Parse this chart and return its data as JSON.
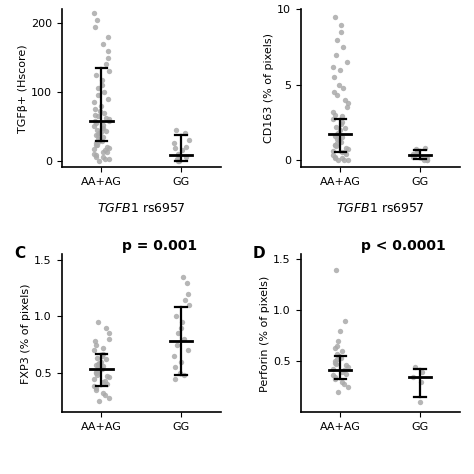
{
  "panel_A": {
    "ylabel": "TGFβ+ (Hscore)",
    "xlabel_italic": "TGFB1",
    "xlabel_normal": " rs6957",
    "groups": [
      "AA+AG",
      "GG"
    ],
    "AA_AG_points": [
      0,
      2,
      3,
      5,
      5,
      8,
      10,
      12,
      13,
      15,
      17,
      18,
      20,
      22,
      23,
      25,
      27,
      28,
      30,
      32,
      35,
      37,
      38,
      40,
      42,
      43,
      45,
      47,
      48,
      50,
      52,
      55,
      57,
      58,
      60,
      62,
      65,
      67,
      70,
      72,
      75,
      80,
      85,
      90,
      95,
      100,
      105,
      110,
      118,
      125,
      130,
      140,
      150,
      160,
      170,
      180,
      195,
      205,
      215
    ],
    "GG_points": [
      0,
      0,
      2,
      5,
      8,
      10,
      15,
      18,
      20,
      25,
      30,
      40,
      45
    ],
    "AA_AG_median": 57,
    "AA_AG_q1": 28,
    "AA_AG_q3": 135,
    "GG_median": 8,
    "GG_q1": 0,
    "GG_q3": 38,
    "ylim": [
      -10,
      220
    ],
    "yticks": [
      0,
      100,
      200
    ],
    "x_positions": [
      1,
      2
    ]
  },
  "panel_B": {
    "ylabel": "CD163 (% of pixels)",
    "xlabel_italic": "TGFB1",
    "xlabel_normal": " rs6957",
    "groups": [
      "AA+AG",
      "GG"
    ],
    "AA_AG_points": [
      0,
      0,
      0,
      0.1,
      0.1,
      0.2,
      0.3,
      0.4,
      0.5,
      0.5,
      0.6,
      0.7,
      0.8,
      0.9,
      1.0,
      1.0,
      1.1,
      1.2,
      1.3,
      1.4,
      1.5,
      1.6,
      1.7,
      1.8,
      2.0,
      2.1,
      2.2,
      2.4,
      2.5,
      2.7,
      2.9,
      3.0,
      3.2,
      3.5,
      3.8,
      4.0,
      4.3,
      4.5,
      4.8,
      5.0,
      5.5,
      6.0,
      6.2,
      6.5,
      7.0,
      7.5,
      8.0,
      8.5,
      9.0,
      9.5
    ],
    "GG_points": [
      0,
      0,
      0,
      0.05,
      0.1,
      0.1,
      0.2,
      0.3,
      0.4,
      0.5,
      0.6,
      0.7,
      0.8
    ],
    "AA_AG_median": 1.7,
    "AA_AG_q1": 0.5,
    "AA_AG_q3": 2.7,
    "GG_median": 0.3,
    "GG_q1": 0.05,
    "GG_q3": 0.65,
    "ylim": [
      -0.5,
      10
    ],
    "yticks": [
      0,
      5,
      10
    ],
    "x_positions": [
      1,
      2
    ]
  },
  "panel_C": {
    "p_value": "p = 0.001",
    "ylabel": "FXP3 (% of pixels)",
    "groups": [
      "AA+AG",
      "GG"
    ],
    "AA_AG_points": [
      0.25,
      0.28,
      0.3,
      0.32,
      0.35,
      0.37,
      0.38,
      0.4,
      0.42,
      0.43,
      0.45,
      0.46,
      0.47,
      0.48,
      0.5,
      0.51,
      0.52,
      0.53,
      0.54,
      0.55,
      0.56,
      0.57,
      0.58,
      0.59,
      0.6,
      0.62,
      0.63,
      0.65,
      0.67,
      0.7,
      0.72,
      0.75,
      0.78,
      0.8,
      0.85,
      0.9,
      0.95
    ],
    "GG_points": [
      0.45,
      0.48,
      0.5,
      0.55,
      0.6,
      0.65,
      0.7,
      0.75,
      0.8,
      0.85,
      0.9,
      0.95,
      1.0,
      1.1,
      1.15,
      1.2,
      1.3,
      1.35
    ],
    "AA_AG_median": 0.53,
    "AA_AG_q1": 0.38,
    "AA_AG_q3": 0.67,
    "GG_median": 0.78,
    "GG_q1": 0.48,
    "GG_q3": 1.08,
    "ylim": [
      0.15,
      1.55
    ],
    "yticks": [
      0.5,
      1.0,
      1.5
    ],
    "x_positions": [
      1,
      2
    ]
  },
  "panel_D": {
    "p_value": "p < 0.0001",
    "ylabel": "Perforin (% of pixels)",
    "groups": [
      "AA+AG",
      "GG"
    ],
    "AA_AG_points": [
      0.2,
      0.25,
      0.28,
      0.3,
      0.33,
      0.35,
      0.37,
      0.38,
      0.4,
      0.42,
      0.43,
      0.45,
      0.46,
      0.47,
      0.48,
      0.5,
      0.52,
      0.53,
      0.55,
      0.57,
      0.6,
      0.63,
      0.65,
      0.7,
      0.8,
      0.9,
      1.4
    ],
    "GG_points": [
      0.1,
      0.3,
      0.35,
      0.4,
      0.45
    ],
    "AA_AG_median": 0.42,
    "AA_AG_q1": 0.33,
    "AA_AG_q3": 0.55,
    "GG_median": 0.35,
    "GG_q1": 0.15,
    "GG_q3": 0.43,
    "ylim": [
      0.0,
      1.55
    ],
    "yticks": [
      0.5,
      1.0,
      1.5
    ],
    "x_positions": [
      1,
      2
    ]
  },
  "dot_color": "#aaaaaa",
  "dot_size": 15,
  "dot_alpha": 0.85,
  "line_color": "#000000",
  "label_fontsize": 11,
  "tick_fontsize": 8,
  "axis_fontsize": 8,
  "xlabel_fontsize": 9,
  "p_fontsize": 10
}
